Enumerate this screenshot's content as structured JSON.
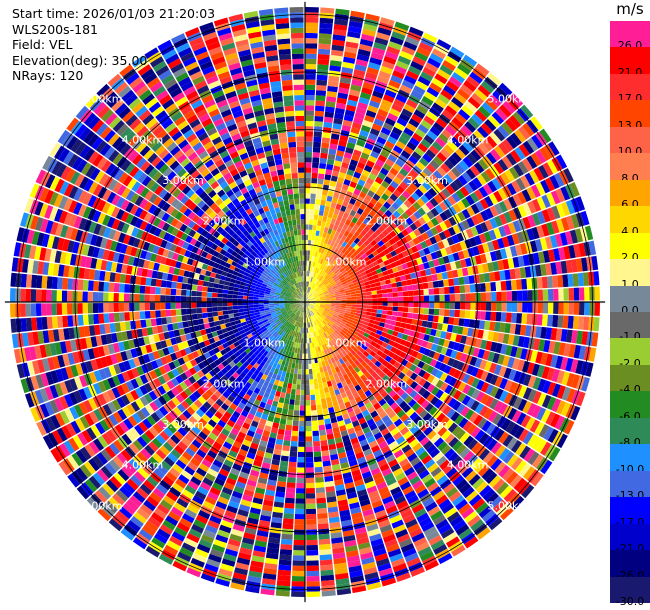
{
  "header": {
    "start_time": "Start time: 2026/01/03 21:20:03",
    "instrument": "WLS200s-181",
    "field": "Field: VEL",
    "elevation": "Elevation(deg): 35.00",
    "nrays": "NRays: 120"
  },
  "colorbar": {
    "unit": "m/s",
    "levels": [
      {
        "label": "26.0",
        "color": "#ff1e96"
      },
      {
        "label": "21.0",
        "color": "#ff0000"
      },
      {
        "label": "17.0",
        "color": "#ff2d2d"
      },
      {
        "label": "13.0",
        "color": "#ff4500"
      },
      {
        "label": "10.0",
        "color": "#ff6347"
      },
      {
        "label": "8.0",
        "color": "#ff7f50"
      },
      {
        "label": "6.0",
        "color": "#ffa500"
      },
      {
        "label": "4.0",
        "color": "#ffd700"
      },
      {
        "label": "2.0",
        "color": "#ffff00"
      },
      {
        "label": "1.0",
        "color": "#fff68f"
      },
      {
        "label": "0.0",
        "color": "#778899"
      },
      {
        "label": "-1.0",
        "color": "#696969"
      },
      {
        "label": "-2.0",
        "color": "#9acd32"
      },
      {
        "label": "-4.0",
        "color": "#6b8e23"
      },
      {
        "label": "-6.0",
        "color": "#228b22"
      },
      {
        "label": "-8.0",
        "color": "#2e8b57"
      },
      {
        "label": "-10.0",
        "color": "#1e90ff"
      },
      {
        "label": "-13.0",
        "color": "#4169e1"
      },
      {
        "label": "-17.0",
        "color": "#0000ff"
      },
      {
        "label": "-21.0",
        "color": "#0000cd"
      },
      {
        "label": "-26.0",
        "color": "#000080"
      },
      {
        "label": "-30.0",
        "color": "#191970"
      }
    ]
  },
  "chart_data": {
    "type": "heatmap",
    "projection": "polar PPI",
    "field": "VEL",
    "units": "m/s",
    "elevation_deg": 35.0,
    "n_rays": 120,
    "range_rings_km": [
      1,
      2,
      3,
      4,
      5
    ],
    "range_ring_labels": [
      "1.00km",
      "2.00km",
      "3.00km",
      "4.00km",
      "5.00km"
    ],
    "ring_label_azimuths_deg": [
      45,
      135,
      225,
      315
    ],
    "max_range_km": 5.15,
    "pattern": "dipole: positive (toward red/pink) in north-east and south-east near center, negative (blue/green) in west; noisy beyond ~2.2 km",
    "coherent_radius_km": 2.2,
    "peak_velocity_ms": 26
  }
}
